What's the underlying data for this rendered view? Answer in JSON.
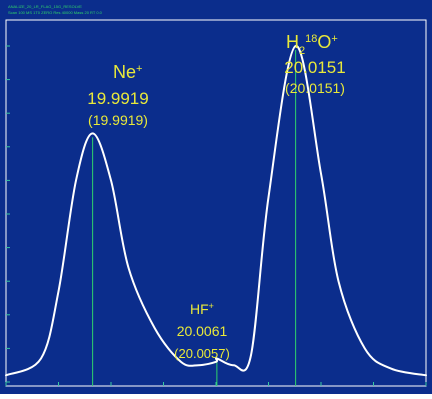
{
  "chart_data": {
    "type": "line",
    "title": "",
    "xlabel": "",
    "ylabel": "",
    "ylim": [
      0,
      1
    ],
    "colors": {
      "plot_background": "#0b2d8c",
      "frame": "#ffffff",
      "trace": "#ffffff",
      "annotation_text": "#e9e93a",
      "marker_lines": "#2fd36b",
      "tick_labels": "#38c7a0"
    },
    "series": [
      {
        "values_description": "",
        "x": [
          19.982,
          19.986,
          19.988,
          19.99,
          19.9919,
          19.994,
          19.996,
          19.999,
          20.002,
          20.004,
          20.006,
          20.0061,
          20.008,
          20.01,
          20.012,
          20.0151,
          20.018,
          20.02,
          20.023,
          20.026,
          20.03
        ],
        "y": [
          0.02,
          0.07,
          0.27,
          0.6,
          0.74,
          0.6,
          0.34,
          0.16,
          0.06,
          0.05,
          0.06,
          0.07,
          0.05,
          0.08,
          0.55,
          1.0,
          0.62,
          0.3,
          0.1,
          0.04,
          0.02
        ]
      }
    ],
    "peaks": [
      {
        "ion_base": "Ne",
        "charge": "+",
        "measured": "19.9919",
        "theoretical": "(19.9919)",
        "x": 19.9919,
        "y": 0.74
      },
      {
        "ion_base": "HF",
        "charge": "+",
        "measured": "20.0061",
        "theoretical": "(20.0057)",
        "x": 20.0061,
        "y": 0.07
      },
      {
        "ion_prefix": "H",
        "ion_sub": "2",
        "ion_sup_mass": "18",
        "ion_tail": "O",
        "charge": "+",
        "measured": "20.0151",
        "theoretical": "(20.0151)",
        "x": 20.0151,
        "y": 1.0
      }
    ],
    "xlim": [
      19.982,
      20.03
    ],
    "header_line_1": "ANALIZE_20_LR_FLAG_15G_RESOLVE",
    "header_line_2": "Scan 100 MS 1T0 ZERO Res 40000 Mass 20 RT 0.0"
  }
}
